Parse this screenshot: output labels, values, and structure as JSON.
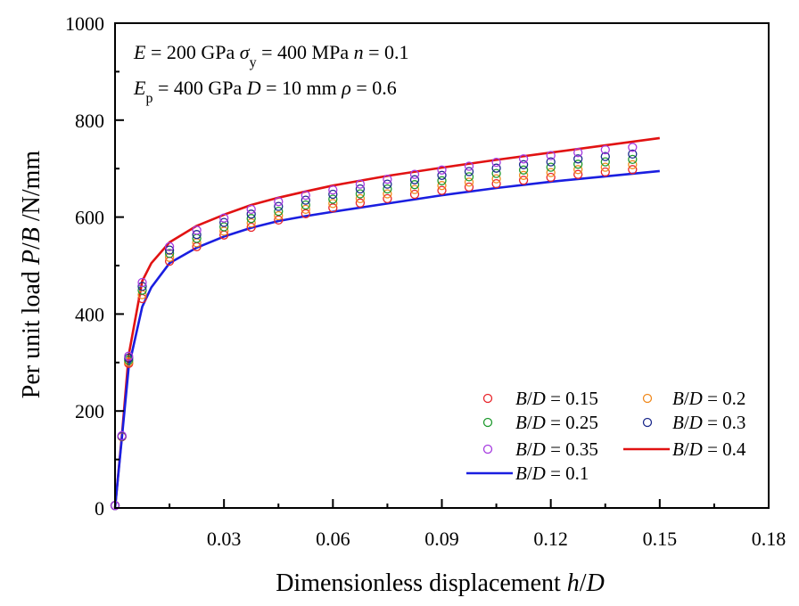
{
  "chart_data": {
    "type": "scatter",
    "title": "",
    "xlabel": "Dimensionless displacement h/D",
    "xlabel_parts": [
      {
        "t": "Dimensionless displacement ",
        "i": false
      },
      {
        "t": "h",
        "i": true
      },
      {
        "t": "/",
        "i": false
      },
      {
        "t": "D",
        "i": true
      }
    ],
    "ylabel": "Per unit load P/B /N/mm",
    "ylabel_parts": [
      {
        "t": "Per unit load ",
        "i": false
      },
      {
        "t": "P",
        "i": true
      },
      {
        "t": "/",
        "i": false
      },
      {
        "t": "B",
        "i": true
      },
      {
        "t": " /N/mm",
        "i": false
      }
    ],
    "xlim": [
      0,
      0.18
    ],
    "ylim": [
      0,
      1000
    ],
    "xticks": [
      0.03,
      0.06,
      0.09,
      0.12,
      0.15,
      0.18
    ],
    "xtick_labels": [
      "0.03",
      "0.06",
      "0.09",
      "0.12",
      "0.15",
      "0.18"
    ],
    "xminor": [
      0.015,
      0.045,
      0.075,
      0.105,
      0.135,
      0.165
    ],
    "yticks": [
      0,
      200,
      400,
      600,
      800,
      1000
    ],
    "ytick_labels": [
      "0",
      "200",
      "400",
      "600",
      "800",
      "1000"
    ],
    "yminor": [
      100,
      300,
      500,
      700,
      900
    ],
    "grid": false,
    "legend_position": "bottom-right",
    "annotations": [
      {
        "parts": [
          {
            "t": "E",
            "i": true
          },
          {
            "t": " = 200 GPa  ",
            "i": false
          },
          {
            "t": "σ",
            "i": true
          },
          {
            "t": "y",
            "i": false,
            "sub": true
          },
          {
            "t": " = 400 MPa   ",
            "i": false
          },
          {
            "t": "n",
            "i": true
          },
          {
            "t": " = 0.1",
            "i": false
          }
        ]
      },
      {
        "parts": [
          {
            "t": "E",
            "i": true
          },
          {
            "t": "p",
            "i": false,
            "sub": true
          },
          {
            "t": " = 400 GPa  ",
            "i": false
          },
          {
            "t": "D",
            "i": true
          },
          {
            "t": " = 10 mm  ",
            "i": false
          },
          {
            "t": "ρ",
            "i": true
          },
          {
            "t": " = 0.6",
            "i": false
          }
        ]
      }
    ],
    "marker_x": [
      0,
      0.0019,
      0.00375,
      0.0075,
      0.015,
      0.0225,
      0.03,
      0.0375,
      0.045,
      0.0525,
      0.06,
      0.0675,
      0.075,
      0.0825,
      0.09,
      0.0975,
      0.105,
      0.1125,
      0.12,
      0.1275,
      0.135,
      0.1425
    ],
    "series": [
      {
        "name": "B/D = 0.15",
        "kind": "marker",
        "color": "#e8252b",
        "values": [
          5,
          147,
          298,
          432,
          509,
          539,
          563,
          579,
          594,
          607,
          619,
          629,
          638,
          647,
          655,
          662,
          669,
          676,
          682,
          688,
          693,
          698
        ]
      },
      {
        "name": "B/D = 0.2",
        "kind": "marker",
        "color": "#f08a1e",
        "values": [
          5,
          147,
          301,
          440,
          517,
          547,
          571,
          588,
          603,
          616,
          628,
          638,
          648,
          657,
          665,
          672,
          679,
          686,
          692,
          698,
          703,
          708
        ]
      },
      {
        "name": "B/D = 0.25",
        "kind": "marker",
        "color": "#1f9a2e",
        "values": [
          5,
          148,
          305,
          449,
          525,
          556,
          580,
          597,
          612,
          625,
          637,
          648,
          658,
          667,
          675,
          683,
          690,
          697,
          703,
          709,
          714,
          719
        ]
      },
      {
        "name": "B/D = 0.3",
        "kind": "marker",
        "color": "#1c2a8c",
        "values": [
          5,
          148,
          309,
          457,
          532,
          564,
          589,
          606,
          622,
          635,
          647,
          658,
          668,
          677,
          686,
          694,
          701,
          708,
          714,
          720,
          725,
          730
        ]
      },
      {
        "name": "B/D = 0.35",
        "kind": "marker",
        "color": "#a63be0",
        "values": [
          5,
          149,
          313,
          465,
          539,
          573,
          598,
          616,
          632,
          645,
          656,
          668,
          678,
          688,
          697,
          705,
          713,
          720,
          727,
          733,
          739,
          744
        ]
      },
      {
        "name": "B/D = 0.4",
        "kind": "line",
        "color": "#e11212",
        "x": [
          0,
          0.0019,
          0.00375,
          0.0075,
          0.01,
          0.015,
          0.0225,
          0.03,
          0.0375,
          0.045,
          0.0525,
          0.06,
          0.075,
          0.09,
          0.105,
          0.12,
          0.135,
          0.15
        ],
        "values": [
          0,
          150,
          315,
          468,
          505,
          548,
          582,
          605,
          625,
          640,
          653,
          665,
          685,
          702,
          718,
          733,
          748,
          763
        ]
      },
      {
        "name": "B/D = 0.1",
        "kind": "line",
        "color": "#1a1ee0",
        "x": [
          0,
          0.0019,
          0.00375,
          0.0075,
          0.01,
          0.015,
          0.0225,
          0.03,
          0.0375,
          0.045,
          0.0525,
          0.06,
          0.075,
          0.09,
          0.105,
          0.12,
          0.135,
          0.15
        ],
        "values": [
          0,
          145,
          290,
          415,
          455,
          505,
          537,
          560,
          578,
          592,
          602,
          611,
          628,
          645,
          660,
          673,
          684,
          695
        ]
      }
    ],
    "legend_order": [
      {
        "series": 0,
        "label_parts": [
          {
            "t": "B",
            "i": true
          },
          {
            "t": "/",
            "i": false
          },
          {
            "t": "D",
            "i": true
          },
          {
            "t": " = 0.15",
            "i": false
          }
        ]
      },
      {
        "series": 1,
        "label_parts": [
          {
            "t": "B",
            "i": true
          },
          {
            "t": "/",
            "i": false
          },
          {
            "t": "D",
            "i": true
          },
          {
            "t": " = 0.2",
            "i": false
          }
        ]
      },
      {
        "series": 2,
        "label_parts": [
          {
            "t": "B",
            "i": true
          },
          {
            "t": "/",
            "i": false
          },
          {
            "t": "D",
            "i": true
          },
          {
            "t": " = 0.25",
            "i": false
          }
        ]
      },
      {
        "series": 3,
        "label_parts": [
          {
            "t": "B",
            "i": true
          },
          {
            "t": "/",
            "i": false
          },
          {
            "t": "D",
            "i": true
          },
          {
            "t": " = 0.3",
            "i": false
          }
        ]
      },
      {
        "series": 4,
        "label_parts": [
          {
            "t": "B",
            "i": true
          },
          {
            "t": "/",
            "i": false
          },
          {
            "t": "D",
            "i": true
          },
          {
            "t": " = 0.35",
            "i": false
          }
        ]
      },
      {
        "series": 5,
        "label_parts": [
          {
            "t": "B",
            "i": true
          },
          {
            "t": "/",
            "i": false
          },
          {
            "t": "D",
            "i": true
          },
          {
            "t": " = 0.4",
            "i": false
          }
        ]
      },
      {
        "series": 6,
        "label_parts": [
          {
            "t": "B",
            "i": true
          },
          {
            "t": "/",
            "i": false
          },
          {
            "t": "D",
            "i": true
          },
          {
            "t": " = 0.1",
            "i": false
          }
        ]
      }
    ]
  }
}
